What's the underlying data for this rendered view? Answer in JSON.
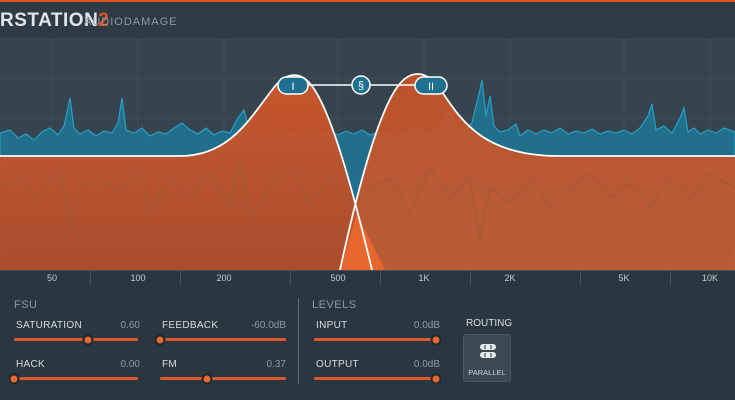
{
  "app": {
    "title_main": "RSTATION",
    "title_num": "2",
    "maker": "AUDIODAMAGE",
    "accent": "#e0531f"
  },
  "graph": {
    "handles": [
      {
        "label": "I"
      },
      {
        "label": "§"
      },
      {
        "label": "II"
      }
    ]
  },
  "freq_axis": {
    "ticks": [
      "50",
      "100",
      "200",
      "500",
      "1K",
      "2K",
      "5K",
      "10K"
    ]
  },
  "fsu": {
    "title": "FSU",
    "saturation": {
      "label": "SATURATION",
      "value": "0.60",
      "level": 0.6
    },
    "feedback": {
      "label": "FEEDBACK",
      "value": "-60.0dB",
      "level": 0.0
    },
    "hack": {
      "label": "HACK",
      "value": "0.00",
      "level": 0.0
    },
    "fm": {
      "label": "FM",
      "value": "0.37",
      "level": 0.37
    }
  },
  "levels": {
    "title": "LEVELS",
    "input": {
      "label": "INPUT",
      "value": "0.0dB",
      "level": 1.0
    },
    "output": {
      "label": "OUTPUT",
      "value": "0.0dB",
      "level": 1.0
    }
  },
  "routing": {
    "label": "ROUTING",
    "mode": "PARALLEL"
  }
}
